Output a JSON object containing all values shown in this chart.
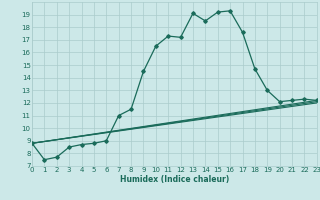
{
  "xlabel": "Humidex (Indice chaleur)",
  "bg_color": "#cce8e8",
  "grid_color": "#aacccc",
  "line_color": "#1a6b5a",
  "xlim": [
    0,
    23
  ],
  "ylim": [
    7,
    20
  ],
  "xticks": [
    0,
    1,
    2,
    3,
    4,
    5,
    6,
    7,
    8,
    9,
    10,
    11,
    12,
    13,
    14,
    15,
    16,
    17,
    18,
    19,
    20,
    21,
    22,
    23
  ],
  "yticks": [
    7,
    8,
    9,
    10,
    11,
    12,
    13,
    14,
    15,
    16,
    17,
    18,
    19
  ],
  "line1_x": [
    0,
    1,
    2,
    3,
    4,
    5,
    6,
    7,
    8,
    9,
    10,
    11,
    12,
    13,
    14,
    15,
    16,
    17,
    18,
    19,
    20,
    21,
    22,
    23
  ],
  "line1_y": [
    8.8,
    7.5,
    7.7,
    8.5,
    8.7,
    8.8,
    9.0,
    11.0,
    11.5,
    14.5,
    16.5,
    17.3,
    17.2,
    19.1,
    18.5,
    19.2,
    19.3,
    17.6,
    14.7,
    13.0,
    12.1,
    12.2,
    12.3,
    12.2
  ],
  "line2_x": [
    0,
    23
  ],
  "line2_y": [
    8.8,
    12.2
  ],
  "line3_x": [
    0,
    23
  ],
  "line3_y": [
    8.8,
    12.1
  ],
  "line4_x": [
    0,
    23
  ],
  "line4_y": [
    8.8,
    12.0
  ]
}
